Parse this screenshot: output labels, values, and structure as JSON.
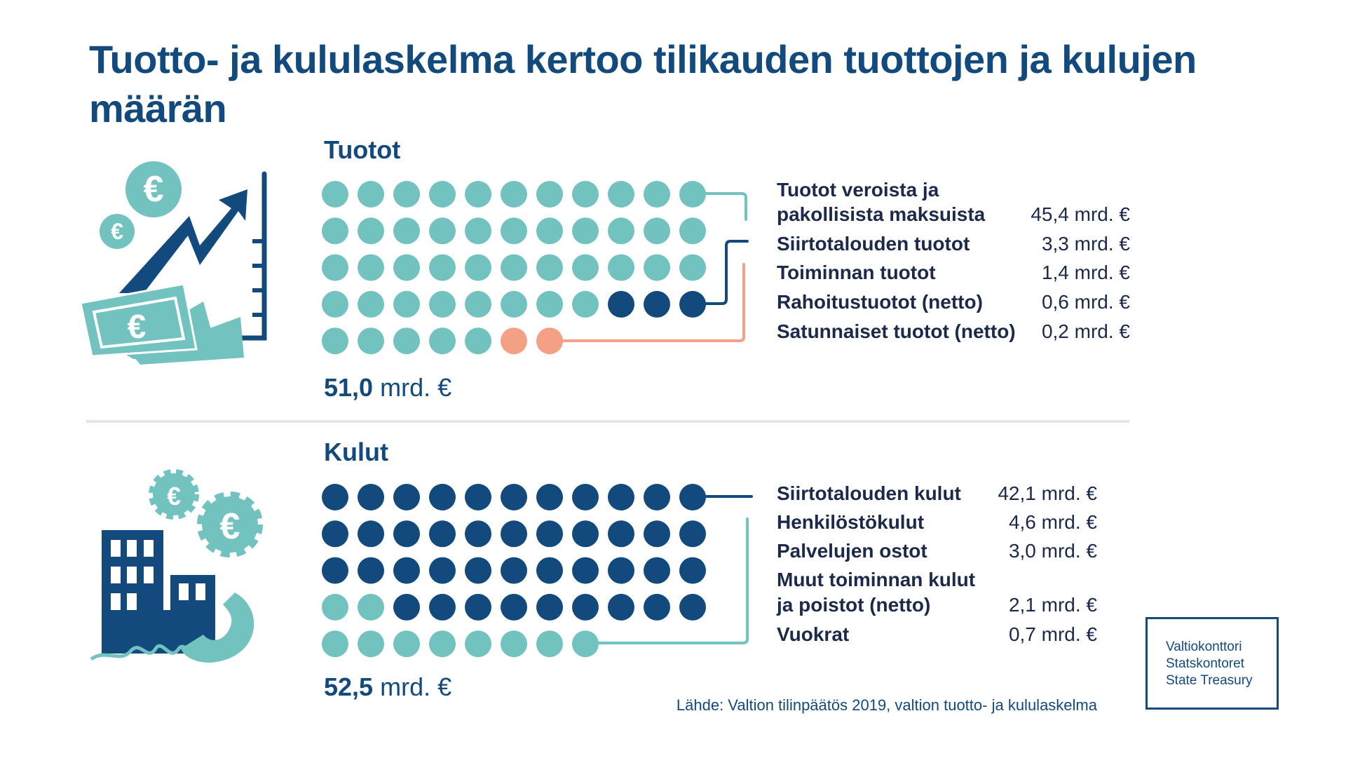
{
  "title": "Tuotto- ja kululaskelma kertoo tilikauden tuottojen ja kulujen määrän",
  "colors": {
    "teal": "#72c2bf",
    "navy": "#124a7e",
    "salmon": "#f4a085"
  },
  "chart_data": [
    {
      "type": "waffle",
      "title": "Tuotot",
      "total": {
        "number": "51,0",
        "unit": "mrd. €"
      },
      "rows": [
        [
          "teal",
          "teal",
          "teal",
          "teal",
          "teal",
          "teal",
          "teal",
          "teal",
          "teal",
          "teal",
          "teal"
        ],
        [
          "teal",
          "teal",
          "teal",
          "teal",
          "teal",
          "teal",
          "teal",
          "teal",
          "teal",
          "teal",
          "teal"
        ],
        [
          "teal",
          "teal",
          "teal",
          "teal",
          "teal",
          "teal",
          "teal",
          "teal",
          "teal",
          "teal",
          "teal"
        ],
        [
          "teal",
          "teal",
          "teal",
          "teal",
          "teal",
          "teal",
          "teal",
          "teal",
          "navy",
          "navy",
          "navy"
        ],
        [
          "teal",
          "teal",
          "teal",
          "teal",
          "teal",
          "salmon",
          "salmon"
        ]
      ],
      "items": [
        {
          "label_line1": "Tuotot veroista ja",
          "label_line2": "pakollisista maksuista",
          "value": 45.4,
          "value_text": "45,4 mrd. €"
        },
        {
          "label": "Siirtotalouden tuotot",
          "value": 3.3,
          "value_text": "3,3 mrd. €"
        },
        {
          "label": "Toiminnan tuotot",
          "value": 1.4,
          "value_text": "1,4 mrd. €"
        },
        {
          "label": "Rahoitustuotot (netto)",
          "value": 0.6,
          "value_text": "0,6 mrd. €"
        },
        {
          "label": "Satunnaiset tuotot (netto)",
          "value": 0.2,
          "value_text": "0,2 mrd. €"
        }
      ]
    },
    {
      "type": "waffle",
      "title": "Kulut",
      "total": {
        "number": "52,5",
        "unit": "mrd. €"
      },
      "rows": [
        [
          "navy",
          "navy",
          "navy",
          "navy",
          "navy",
          "navy",
          "navy",
          "navy",
          "navy",
          "navy",
          "navy"
        ],
        [
          "navy",
          "navy",
          "navy",
          "navy",
          "navy",
          "navy",
          "navy",
          "navy",
          "navy",
          "navy",
          "navy"
        ],
        [
          "navy",
          "navy",
          "navy",
          "navy",
          "navy",
          "navy",
          "navy",
          "navy",
          "navy",
          "navy",
          "navy"
        ],
        [
          "teal",
          "teal",
          "navy",
          "navy",
          "navy",
          "navy",
          "navy",
          "navy",
          "navy",
          "navy",
          "navy"
        ],
        [
          "teal",
          "teal",
          "teal",
          "teal",
          "teal",
          "teal",
          "teal",
          "teal"
        ]
      ],
      "items": [
        {
          "label": "Siirtotalouden kulut",
          "value": 42.1,
          "value_text": "42,1 mrd. €"
        },
        {
          "label": "Henkilöstökulut",
          "value": 4.6,
          "value_text": "4,6 mrd. €"
        },
        {
          "label": "Palvelujen ostot",
          "value": 3.0,
          "value_text": "3,0 mrd. €"
        },
        {
          "label_line1": "Muut toiminnan kulut",
          "label_line2": "ja poistot (netto)",
          "value": 2.1,
          "value_text": "2,1 mrd. €"
        },
        {
          "label": "Vuokrat",
          "value": 0.7,
          "value_text": "0,7 mrd. €"
        }
      ]
    }
  ],
  "source": "Lähde: Valtion tilinpäätös 2019, valtion tuotto- ja kululaskelma",
  "logo": {
    "line1": "Valtiokonttori",
    "line2": "Statskontoret",
    "line3": "State Treasury"
  },
  "icons": {
    "income": "money-chart-icon",
    "expenses": "building-gears-phone-icon"
  }
}
